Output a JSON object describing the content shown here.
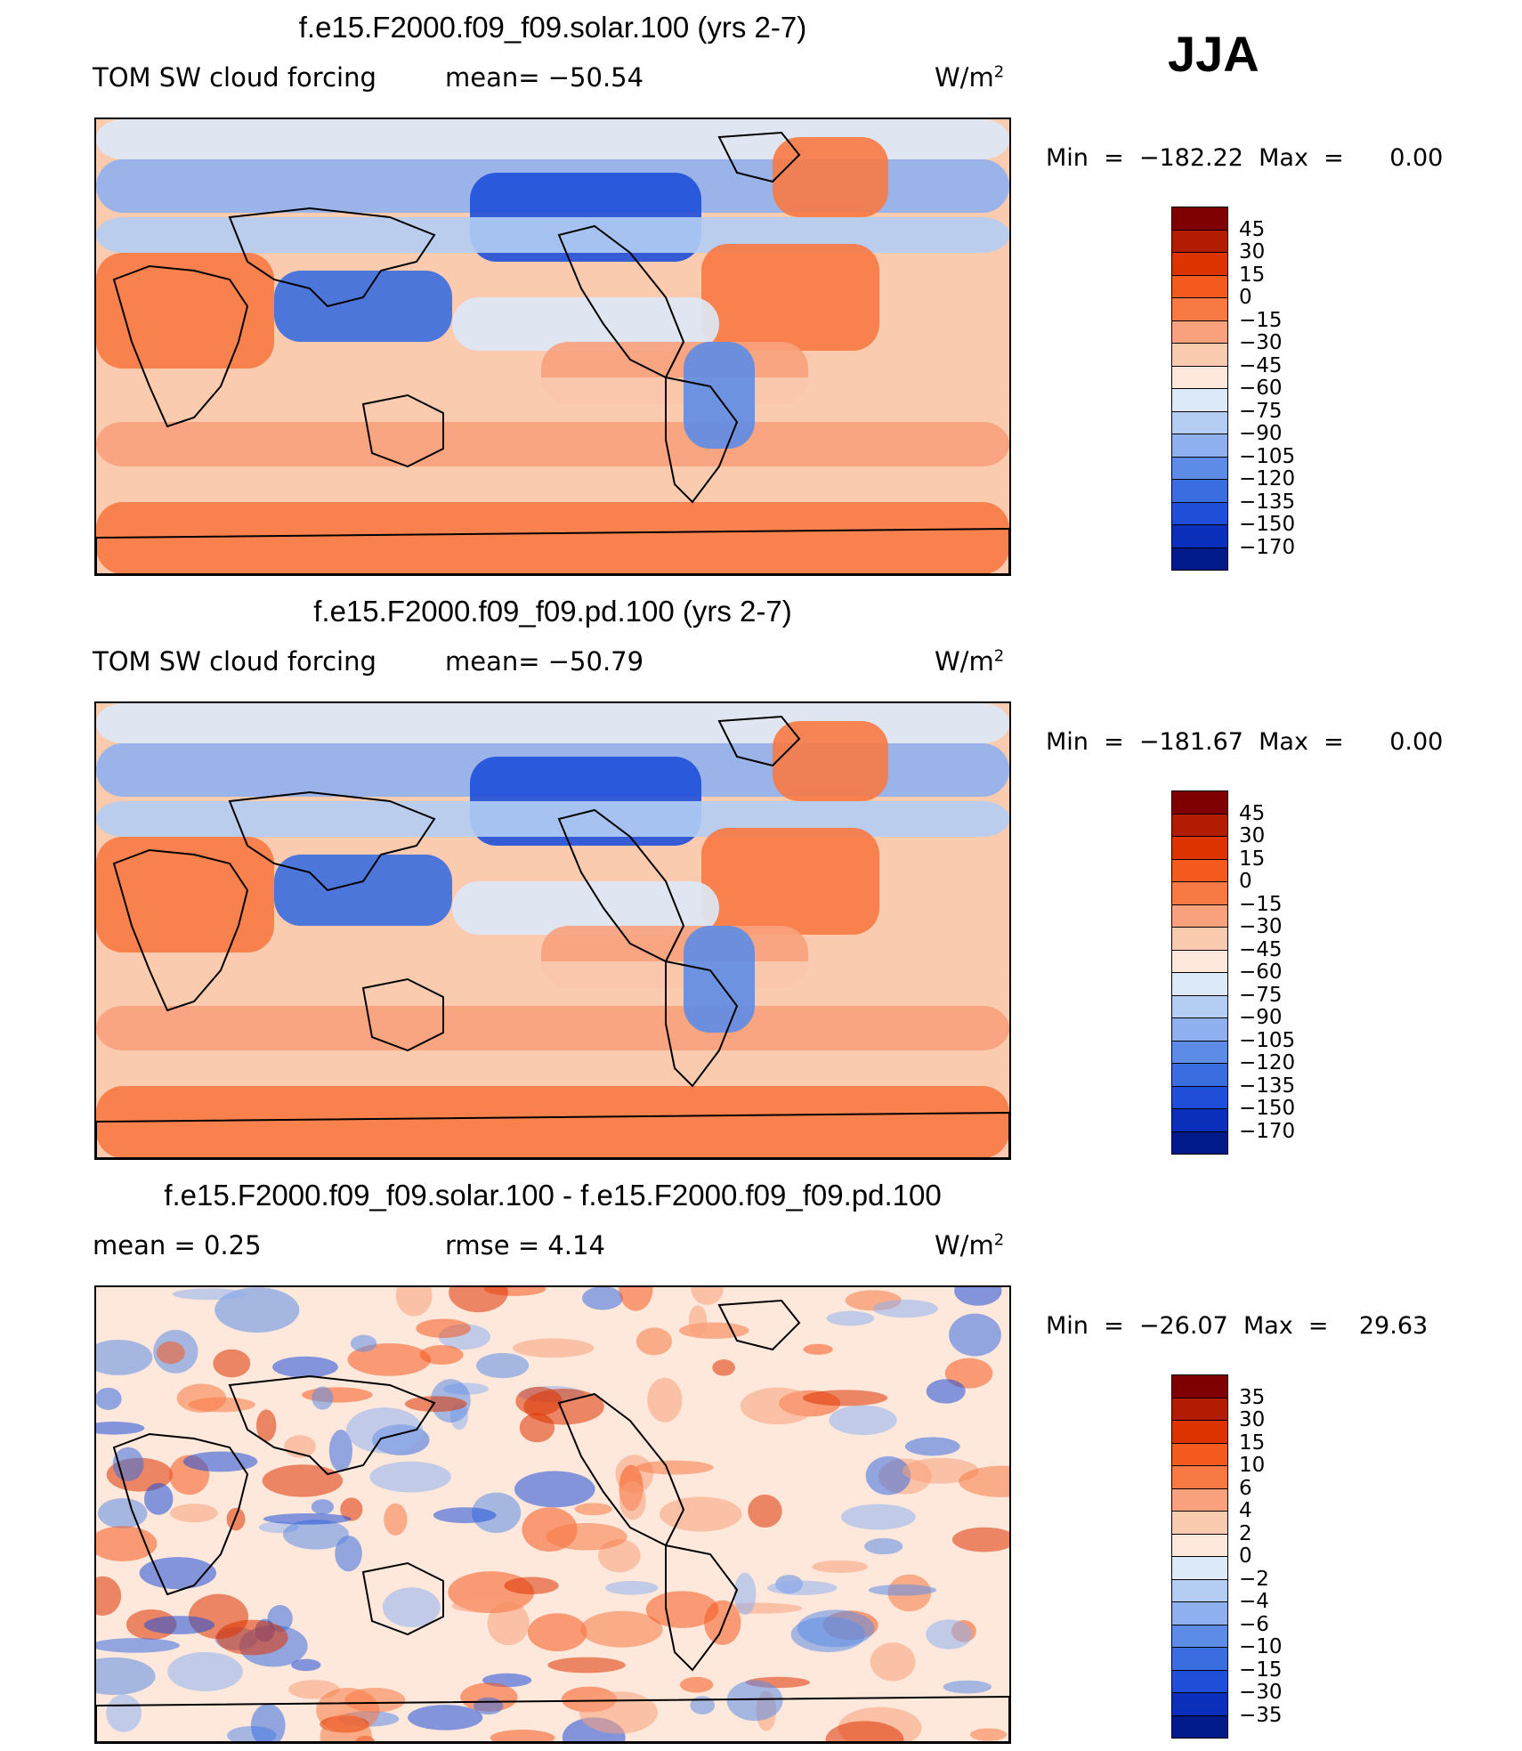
{
  "season": "JJA",
  "panels": [
    {
      "title": "f.e15.F2000.f09_f09.solar.100 (yrs 2-7)",
      "left_text": "TOM SW cloud forcing",
      "mid_text": "mean= −50.54",
      "units": "W/m",
      "units_exp": "2",
      "minmax": "Min  =  −182.22  Max  =      0.00",
      "type": "field",
      "colorbar": {
        "colors": [
          "#7f0000",
          "#b31c00",
          "#dd3300",
          "#f55a1f",
          "#f87944",
          "#f9a17c",
          "#fbcbb0",
          "#fde8db",
          "#dce9f8",
          "#b3cdf3",
          "#8fb1ef",
          "#5c8ce6",
          "#3a6de0",
          "#1f4fd9",
          "#0a2fba",
          "#001a8a"
        ],
        "ticks": [
          "45",
          "30",
          "15",
          "0",
          "−15",
          "−30",
          "−45",
          "−60",
          "−75",
          "−90",
          "−105",
          "−120",
          "−135",
          "−150",
          "−170"
        ]
      }
    },
    {
      "title": "f.e15.F2000.f09_f09.pd.100 (yrs 2-7)",
      "left_text": "TOM SW cloud forcing",
      "mid_text": "mean= −50.79",
      "units": "W/m",
      "units_exp": "2",
      "minmax": "Min  =  −181.67  Max  =      0.00",
      "type": "field",
      "colorbar": {
        "colors": [
          "#7f0000",
          "#b31c00",
          "#dd3300",
          "#f55a1f",
          "#f87944",
          "#f9a17c",
          "#fbcbb0",
          "#fde8db",
          "#dce9f8",
          "#b3cdf3",
          "#8fb1ef",
          "#5c8ce6",
          "#3a6de0",
          "#1f4fd9",
          "#0a2fba",
          "#001a8a"
        ],
        "ticks": [
          "45",
          "30",
          "15",
          "0",
          "−15",
          "−30",
          "−45",
          "−60",
          "−75",
          "−90",
          "−105",
          "−120",
          "−135",
          "−150",
          "−170"
        ]
      }
    },
    {
      "title": "f.e15.F2000.f09_f09.solar.100 - f.e15.F2000.f09_f09.pd.100",
      "left_text": "mean  =     0.25",
      "mid_text": "rmse  =     4.14",
      "units": "W/m",
      "units_exp": "2",
      "minmax": "Min  =  −26.07  Max  =    29.63",
      "type": "diff",
      "colorbar": {
        "colors": [
          "#7f0000",
          "#b31c00",
          "#dd3300",
          "#f55a1f",
          "#f87944",
          "#f9a17c",
          "#fbcbb0",
          "#fde8db",
          "#dce9f8",
          "#b3cdf3",
          "#8fb1ef",
          "#5c8ce6",
          "#3a6de0",
          "#1f4fd9",
          "#0a2fba",
          "#001a8a"
        ],
        "ticks": [
          "35",
          "30",
          "15",
          "10",
          "6",
          "4",
          "2",
          "0",
          "−2",
          "−4",
          "−6",
          "−10",
          "−15",
          "−30",
          "−35"
        ]
      }
    }
  ]
}
